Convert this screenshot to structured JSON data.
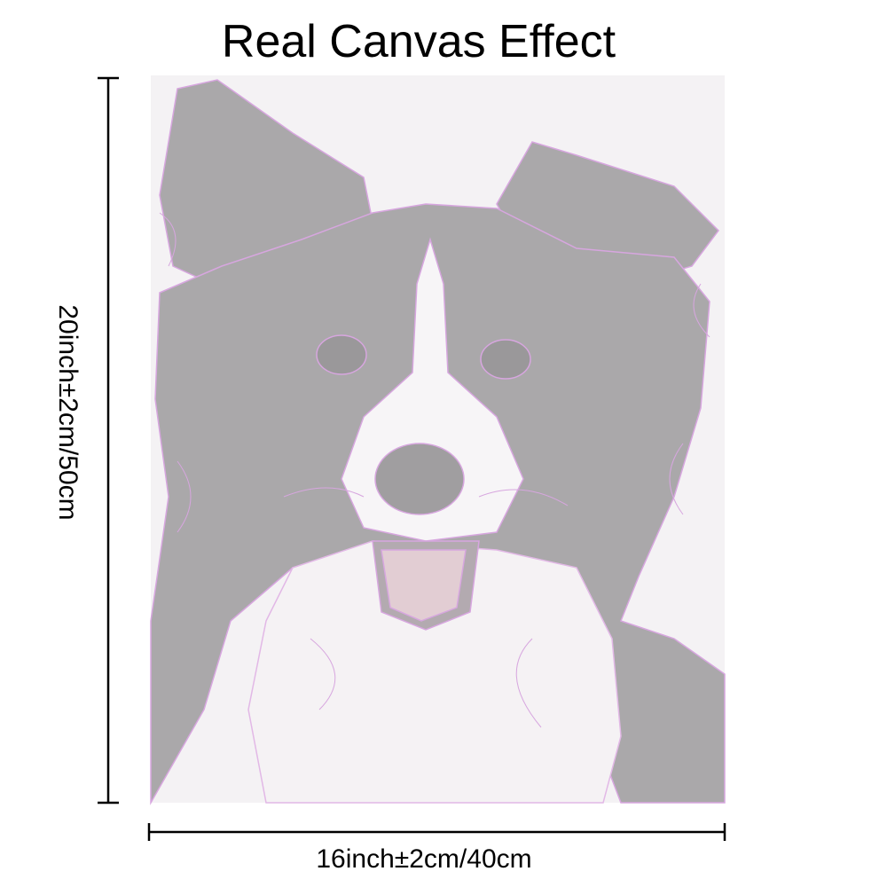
{
  "header": {
    "title": "Real Canvas Effect"
  },
  "dimensions": {
    "height": "20inch±2cm/50cm",
    "width": "16inch±2cm/40cm"
  }
}
